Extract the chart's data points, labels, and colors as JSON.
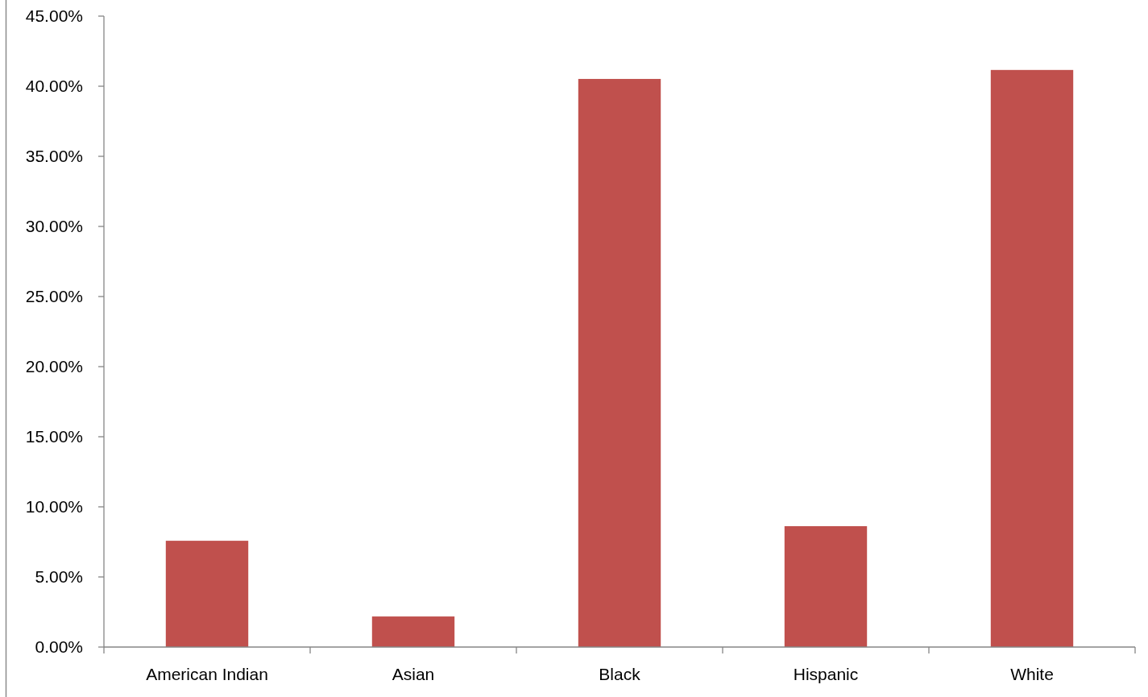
{
  "chart_data": {
    "type": "bar",
    "categories": [
      "American Indian",
      "Asian",
      "Black",
      "Hispanic",
      "White"
    ],
    "values": [
      7.58,
      2.18,
      40.52,
      8.62,
      41.16
    ],
    "color": "#c0504d",
    "ylim": [
      0,
      45
    ],
    "yticks": [
      {
        "value": 0,
        "label": "0.00%"
      },
      {
        "value": 5,
        "label": "5.00%"
      },
      {
        "value": 10,
        "label": "10.00%"
      },
      {
        "value": 15,
        "label": "15.00%"
      },
      {
        "value": 20,
        "label": "20.00%"
      },
      {
        "value": 25,
        "label": "25.00%"
      },
      {
        "value": 30,
        "label": "30.00%"
      },
      {
        "value": 35,
        "label": "35.00%"
      },
      {
        "value": 40,
        "label": "40.00%"
      },
      {
        "value": 45,
        "label": "45.00%"
      }
    ]
  }
}
